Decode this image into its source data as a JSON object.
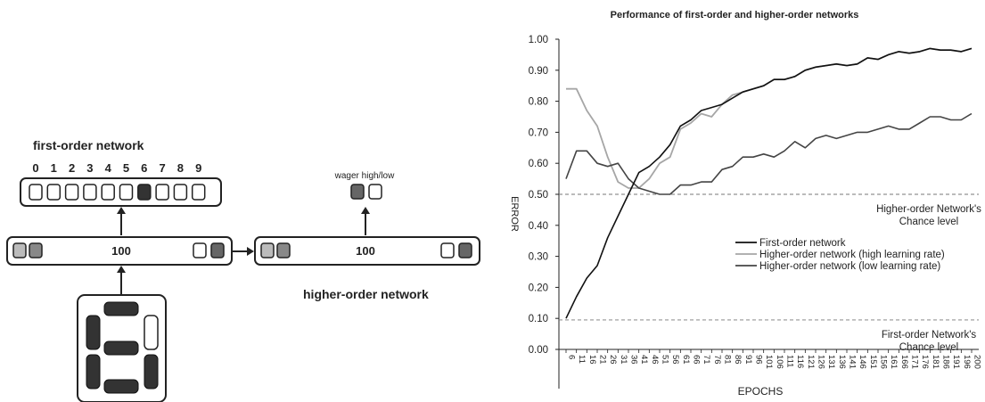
{
  "diagram": {
    "first_order_title": "first-order network",
    "digits": [
      "0",
      "1",
      "2",
      "3",
      "4",
      "5",
      "6",
      "7",
      "8",
      "9"
    ],
    "active_output_index": 6,
    "hidden_label_left": "100",
    "hidden_label_right": "100",
    "wager_label": "wager high/low",
    "higher_order_title": "higher-order network",
    "display_digit": "6"
  },
  "chart_data": {
    "type": "line",
    "title": "Performance of first-order and higher-order networks",
    "xlabel": "EPOCHS",
    "ylabel": "ERROR",
    "ylim": [
      0,
      1
    ],
    "yticks": [
      "0.00",
      "0.10",
      "0.20",
      "0.30",
      "0.40",
      "0.50",
      "0.60",
      "0.70",
      "0.80",
      "0.90",
      "1.00"
    ],
    "x": [
      6,
      11,
      16,
      21,
      26,
      31,
      36,
      41,
      46,
      51,
      56,
      61,
      66,
      71,
      76,
      81,
      86,
      91,
      96,
      101,
      106,
      111,
      116,
      121,
      126,
      131,
      136,
      141,
      146,
      151,
      156,
      161,
      166,
      171,
      176,
      181,
      186,
      191,
      196,
      200
    ],
    "series": [
      {
        "name": "First-order network",
        "color": "#111111",
        "values": [
          0.1,
          0.17,
          0.23,
          0.27,
          0.36,
          0.43,
          0.5,
          0.57,
          0.59,
          0.62,
          0.66,
          0.72,
          0.74,
          0.77,
          0.78,
          0.79,
          0.81,
          0.83,
          0.84,
          0.85,
          0.87,
          0.87,
          0.88,
          0.9,
          0.91,
          0.915,
          0.92,
          0.915,
          0.92,
          0.94,
          0.935,
          0.95,
          0.96,
          0.955,
          0.96,
          0.97,
          0.965,
          0.965,
          0.96,
          0.97
        ]
      },
      {
        "name": "Higher-order network (high learning rate)",
        "color": "#a6a6a6",
        "values": [
          0.84,
          0.84,
          0.77,
          0.72,
          0.62,
          0.54,
          0.52,
          0.52,
          0.55,
          0.6,
          0.62,
          0.71,
          0.73,
          0.76,
          0.75,
          0.79,
          0.82,
          0.83,
          0.84,
          0.85,
          0.87,
          0.87,
          0.88,
          0.9,
          0.91,
          0.915,
          0.92,
          0.915,
          0.92,
          0.94,
          0.935,
          0.95,
          0.96,
          0.955,
          0.96,
          0.97,
          0.965,
          0.965,
          0.96,
          0.97
        ]
      },
      {
        "name": "Higher-order network (low learning rate)",
        "color": "#444444",
        "values": [
          0.55,
          0.64,
          0.64,
          0.6,
          0.59,
          0.6,
          0.55,
          0.52,
          0.51,
          0.5,
          0.5,
          0.53,
          0.53,
          0.54,
          0.54,
          0.58,
          0.59,
          0.62,
          0.62,
          0.63,
          0.62,
          0.64,
          0.67,
          0.65,
          0.68,
          0.69,
          0.68,
          0.69,
          0.7,
          0.7,
          0.71,
          0.72,
          0.71,
          0.71,
          0.73,
          0.75,
          0.75,
          0.74,
          0.74,
          0.76
        ]
      }
    ],
    "reference_lines": [
      {
        "y": 0.5,
        "label_line1": "Higher-order Network's",
        "label_line2": "Chance level"
      },
      {
        "y": 0.095,
        "label_line1": "First-order Network's",
        "label_line2": "Chance level"
      }
    ],
    "legend_position": "center-right",
    "grid": false
  }
}
